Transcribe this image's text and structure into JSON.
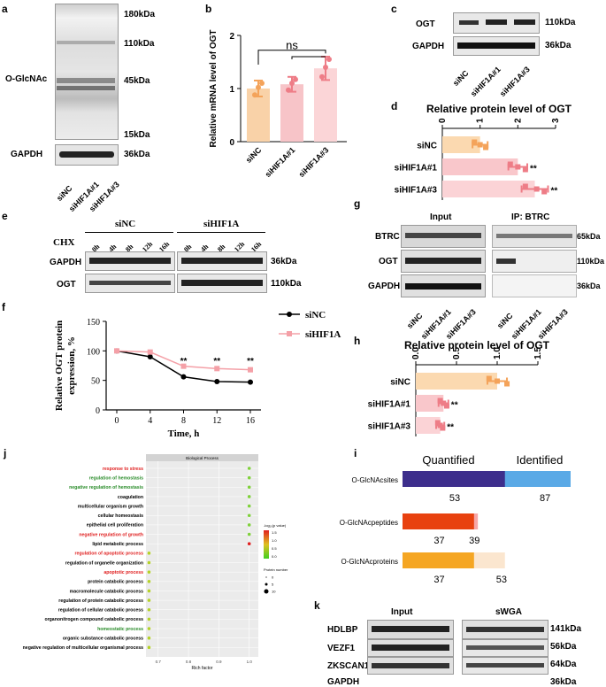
{
  "panels": {
    "a": {
      "letter": "a",
      "row_label": "O-GlcNAc",
      "loading_label": "GAPDH",
      "markers": [
        "180kDa",
        "110kDa",
        "45kDa",
        "15kDa"
      ],
      "gapdh_marker": "36kDa",
      "lanes": [
        "siNC",
        "siHIF1A#1",
        "siHIF1A#3"
      ]
    },
    "b": {
      "letter": "b",
      "chart_data": {
        "type": "bar",
        "categories": [
          "siNC",
          "siHIF1A#1",
          "siHIF1A#3"
        ],
        "values": [
          1.0,
          1.08,
          1.38
        ],
        "errors": [
          0.15,
          0.14,
          0.22
        ],
        "points": [
          [
            0.88,
            1.02,
            1.1
          ],
          [
            0.97,
            1.1,
            1.17
          ],
          [
            1.22,
            1.4,
            1.55
          ]
        ],
        "colors": [
          "#f9d2a8",
          "#f7c4c8",
          "#fbd5d7"
        ],
        "ylabel": "Relative mRNA level of OGT",
        "ylim": [
          0,
          2
        ],
        "yticks": [
          "0",
          "1",
          "2"
        ],
        "annotation": "ns"
      }
    },
    "c": {
      "letter": "c",
      "rows": [
        "OGT",
        "GAPDH"
      ],
      "markers": [
        "110kDa",
        "36kDa"
      ],
      "lanes": [
        "siNC",
        "siHIF1A#1",
        "siHIF1A#3"
      ]
    },
    "d": {
      "letter": "d",
      "chart_data": {
        "type": "bar",
        "orientation": "horizontal",
        "title": "Relative protein level of OGT",
        "categories": [
          "siNC",
          "siHIF1A#1",
          "siHIF1A#3"
        ],
        "values": [
          1.0,
          2.0,
          2.45
        ],
        "errors": [
          0.2,
          0.25,
          0.35
        ],
        "points": [
          [
            0.85,
            1.0,
            1.15
          ],
          [
            1.8,
            2.0,
            2.2
          ],
          [
            2.2,
            2.5,
            2.7
          ]
        ],
        "xticks": [
          "0",
          "1",
          "2",
          "3"
        ],
        "xlim": [
          0,
          3
        ],
        "significance": [
          "",
          "**",
          "**"
        ]
      }
    },
    "e": {
      "letter": "e",
      "group_labels": [
        "siNC",
        "siHIF1A"
      ],
      "chx_label": "CHX",
      "times": [
        "0h",
        "4h",
        "8h",
        "12h",
        "16h"
      ],
      "rows": [
        "GAPDH",
        "OGT"
      ],
      "markers": [
        "36kDa",
        "110kDa"
      ]
    },
    "f": {
      "letter": "f",
      "chart_data": {
        "type": "line",
        "x": [
          0,
          4,
          8,
          12,
          16
        ],
        "series": [
          {
            "name": "siNC",
            "values": [
              100,
              90,
              56,
              48,
              47
            ],
            "color": "#000000"
          },
          {
            "name": "siHIF1A",
            "values": [
              100,
              98,
              74,
              70,
              68
            ],
            "color": "#f4a0a7"
          }
        ],
        "xlabel": "Time, h",
        "ylabel": "Relative OGT protein expression, %",
        "ylim": [
          0,
          150
        ],
        "yticks": [
          "0",
          "50",
          "100",
          "150"
        ],
        "xticks": [
          "0",
          "4",
          "8",
          "12",
          "16"
        ],
        "annotations": [
          "**",
          "**",
          "**"
        ]
      }
    },
    "g": {
      "letter": "g",
      "input_label": "Input",
      "ip_label": "IP: BTRC",
      "rows": [
        "BTRC",
        "OGT",
        "GAPDH"
      ],
      "markers": [
        "65kDa",
        "110kDa",
        "36kDa"
      ],
      "lanes": [
        "siNC",
        "siHIF1A#1",
        "siHIF1A#3"
      ]
    },
    "h": {
      "letter": "h",
      "chart_data": {
        "type": "bar",
        "orientation": "horizontal",
        "title": "Relative protein level of OGT",
        "categories": [
          "siNC",
          "siHIF1A#1",
          "siHIF1A#3"
        ],
        "values": [
          1.0,
          0.34,
          0.3
        ],
        "errors": [
          0.12,
          0.06,
          0.05
        ],
        "points": [
          [
            0.9,
            1.0,
            1.12
          ],
          [
            0.3,
            0.34,
            0.38
          ],
          [
            0.27,
            0.3,
            0.33
          ]
        ],
        "xticks": [
          "0.0",
          "0.5",
          "1.0",
          "1.5"
        ],
        "xlim": [
          0,
          1.5
        ],
        "significance": [
          "",
          "**",
          "**"
        ]
      }
    },
    "j": {
      "letter": "j",
      "chart_data": {
        "type": "scatter",
        "title": "Biological Process",
        "xlabel": "Rich factor",
        "xticks": [
          "0.7",
          "0.8",
          "0.9",
          "1.0"
        ],
        "xlim": [
          0.66,
          1.03
        ],
        "terms": [
          {
            "name": "response to stress",
            "rich": 1.0,
            "color": "#7fd13b",
            "label_color": "#e02020"
          },
          {
            "name": "regulation of hemostasis",
            "rich": 1.0,
            "color": "#7fd13b",
            "label_color": "#2a8c2a"
          },
          {
            "name": "negative regulation of hemostasis",
            "rich": 1.0,
            "color": "#7fd13b",
            "label_color": "#2a8c2a"
          },
          {
            "name": "coagulation",
            "rich": 1.0,
            "color": "#7fd13b",
            "label_color": "#000000"
          },
          {
            "name": "multicellular organism growth",
            "rich": 1.0,
            "color": "#7fd13b",
            "label_color": "#000000"
          },
          {
            "name": "cellular homeostasis",
            "rich": 1.0,
            "color": "#7fd13b",
            "label_color": "#000000"
          },
          {
            "name": "epithelial cell proliferation",
            "rich": 1.0,
            "color": "#7fd13b",
            "label_color": "#000000"
          },
          {
            "name": "negative regulation of growth",
            "rich": 1.0,
            "color": "#7fd13b",
            "label_color": "#e02020"
          },
          {
            "name": "lipid metabolic process",
            "rich": 1.0,
            "color": "#e02020",
            "label_color": "#000000"
          },
          {
            "name": "regulation of apoptotic process",
            "rich": 0.67,
            "color": "#b5d22a",
            "label_color": "#e02020"
          },
          {
            "name": "regulation of organelle organization",
            "rich": 0.67,
            "color": "#b5d22a",
            "label_color": "#000000"
          },
          {
            "name": "apoptotic process",
            "rich": 0.67,
            "color": "#b5d22a",
            "label_color": "#e02020"
          },
          {
            "name": "protein catabolic process",
            "rich": 0.67,
            "color": "#b5d22a",
            "label_color": "#000000"
          },
          {
            "name": "macromolecule catabolic process",
            "rich": 0.67,
            "color": "#b5d22a",
            "label_color": "#000000"
          },
          {
            "name": "regulation of protein catabolic process",
            "rich": 0.67,
            "color": "#b5d22a",
            "label_color": "#000000"
          },
          {
            "name": "regulation of cellular catabolic process",
            "rich": 0.67,
            "color": "#b5d22a",
            "label_color": "#000000"
          },
          {
            "name": "organonitrogen compound catabolic process",
            "rich": 0.67,
            "color": "#b5d22a",
            "label_color": "#000000"
          },
          {
            "name": "homeostatic process",
            "rich": 0.67,
            "color": "#b5d22a",
            "label_color": "#2a8c2a"
          },
          {
            "name": "organic substance catabolic process",
            "rich": 0.67,
            "color": "#b5d22a",
            "label_color": "#000000"
          },
          {
            "name": "negative regulation of multicellular organismal process",
            "rich": 0.67,
            "color": "#b5d22a",
            "label_color": "#000000"
          }
        ],
        "legend_color_title": "-log₁₀(p value)",
        "legend_color_ticks": [
          "1.5",
          "1.0",
          "0.5",
          "0.0"
        ],
        "legend_size_title": "Protein number",
        "legend_size_ticks": [
          "0",
          "5",
          "10"
        ]
      }
    },
    "i": {
      "letter": "i",
      "chart_data": {
        "type": "bar",
        "orientation": "horizontal-stacked",
        "headers": [
          "Quantified",
          "Identified"
        ],
        "categories": [
          "O-GlcNAcsites",
          "O-GlcNAcpeptides",
          "O-GlcNAcproteins"
        ],
        "quantified": [
          53,
          37,
          37
        ],
        "identified": [
          87,
          39,
          53
        ],
        "quantified_colors": [
          "#3d2e8c",
          "#e8410f",
          "#f5a623"
        ],
        "identified_colors": [
          "#5aa9e6",
          "#f7a6a6",
          "#fbe6cf"
        ],
        "xlim": [
          0,
          87
        ]
      }
    },
    "k": {
      "letter": "k",
      "input_label": "Input",
      "swga_label": "sWGA",
      "rows": [
        "HDLBP",
        "VEZF1",
        "ZKSCAN1",
        "GAPDH"
      ],
      "markers": [
        "141kDa",
        "56kDa",
        "64kDa",
        "36kDa"
      ]
    }
  }
}
